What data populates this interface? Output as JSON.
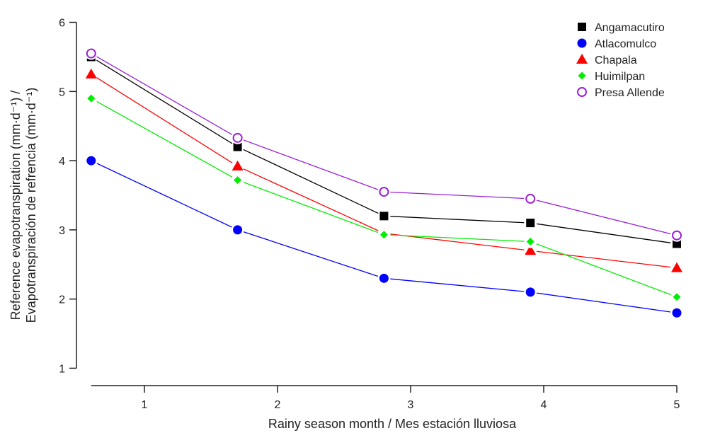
{
  "chart_data": {
    "type": "line",
    "title": "",
    "xlabel": "Rainy season month / Mes estación lluviosa",
    "ylabel_line1": "Reference evapotranspiration (mm·d⁻¹) /",
    "ylabel_line2": "Evapotranspiración de refrencia (mm·d⁻¹)",
    "xlim": [
      0.5,
      5.0
    ],
    "ylim": [
      0.8,
      6.2
    ],
    "x_ticks": [
      1,
      2,
      3,
      4,
      5
    ],
    "y_ticks": [
      1,
      2,
      3,
      4,
      5,
      6
    ],
    "legend_position": "top-right",
    "grid": false,
    "series": [
      {
        "name": "Angamacutiro",
        "color": "#000000",
        "marker": "square",
        "x": [
          0.6,
          1.7,
          2.8,
          3.9,
          5.0
        ],
        "y": [
          5.5,
          4.2,
          3.2,
          3.1,
          2.8
        ]
      },
      {
        "name": "Atlacomulco",
        "color": "#0000ff",
        "marker": "circle",
        "x": [
          0.6,
          1.7,
          2.8,
          3.9,
          5.0
        ],
        "y": [
          4.0,
          3.0,
          2.3,
          2.1,
          1.8
        ]
      },
      {
        "name": "Chapala",
        "color": "#ff0000",
        "marker": "triangle",
        "x": [
          0.6,
          1.7,
          2.8,
          3.9,
          5.0
        ],
        "y": [
          5.25,
          3.92,
          2.95,
          2.7,
          2.45
        ]
      },
      {
        "name": "Huimilpan",
        "color": "#00ee00",
        "marker": "diamond",
        "x": [
          0.6,
          1.7,
          2.8,
          3.9,
          5.0
        ],
        "y": [
          4.9,
          3.72,
          2.93,
          2.83,
          2.03
        ]
      },
      {
        "name": "Presa Allende",
        "color": "#9a1fd6",
        "marker": "open-circle",
        "x": [
          0.6,
          1.7,
          2.8,
          3.9,
          5.0
        ],
        "y": [
          5.55,
          4.33,
          3.55,
          3.45,
          2.92
        ]
      }
    ]
  }
}
